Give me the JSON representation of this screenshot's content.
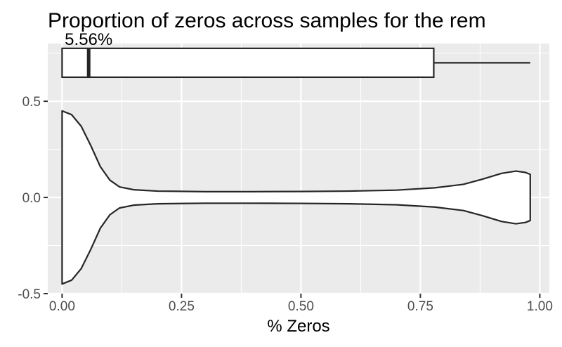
{
  "chart_data": {
    "type": "violin",
    "title": "Proportion of zeros across samples for the rem",
    "xlabel": "% Zeros",
    "ylabel": "",
    "xlim": [
      -0.03,
      1.02
    ],
    "ylim": [
      -0.5,
      0.8
    ],
    "x_ticks": [
      0.0,
      0.25,
      0.5,
      0.75,
      1.0
    ],
    "x_tick_labels": [
      "0.00",
      "0.25",
      "0.50",
      "0.75",
      "1.00"
    ],
    "y_ticks": [
      -0.5,
      0.0,
      0.5
    ],
    "y_tick_labels": [
      "-0.5",
      "0.0",
      "0.5"
    ],
    "grid": true,
    "boxplot": {
      "y_center": 0.7,
      "half_height": 0.075,
      "min": 0.0,
      "q1": 0.0,
      "median": 0.0556,
      "q3": 0.778,
      "max": 0.98
    },
    "median_label": "5.56%",
    "violin": {
      "y_center": 0.0,
      "profile": [
        [
          0.0,
          0.45
        ],
        [
          0.02,
          0.43
        ],
        [
          0.04,
          0.37
        ],
        [
          0.06,
          0.27
        ],
        [
          0.08,
          0.16
        ],
        [
          0.1,
          0.09
        ],
        [
          0.12,
          0.055
        ],
        [
          0.15,
          0.04
        ],
        [
          0.2,
          0.033
        ],
        [
          0.3,
          0.03
        ],
        [
          0.4,
          0.03
        ],
        [
          0.5,
          0.031
        ],
        [
          0.6,
          0.033
        ],
        [
          0.7,
          0.038
        ],
        [
          0.78,
          0.05
        ],
        [
          0.84,
          0.068
        ],
        [
          0.88,
          0.095
        ],
        [
          0.92,
          0.125
        ],
        [
          0.95,
          0.137
        ],
        [
          0.97,
          0.13
        ],
        [
          0.98,
          0.12
        ]
      ]
    },
    "colors": {
      "panel": "#ebebeb",
      "grid_major": "#ffffff",
      "outline": "#262626",
      "fill": "#ffffff"
    }
  }
}
